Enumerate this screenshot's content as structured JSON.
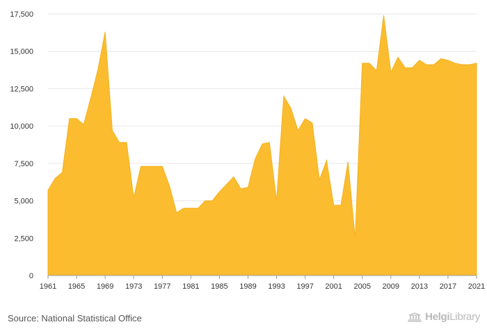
{
  "chart_data": {
    "type": "area",
    "color": "#FBBC2F",
    "x_start": 1961,
    "x_tick_labels": [
      "1961",
      "1965",
      "1969",
      "1973",
      "1977",
      "1981",
      "1985",
      "1989",
      "1993",
      "1997",
      "2001",
      "2005",
      "2009",
      "2013",
      "2017",
      "2021"
    ],
    "ylim": [
      0,
      17500
    ],
    "y_tick_values": [
      0,
      2500,
      5000,
      7500,
      10000,
      12500,
      15000,
      17500
    ],
    "y_tick_labels": [
      "0",
      "2,500",
      "5,000",
      "7,500",
      "10,000",
      "12,500",
      "15,000",
      "17,500"
    ],
    "x": [
      1961,
      1962,
      1963,
      1964,
      1965,
      1966,
      1967,
      1968,
      1969,
      1970,
      1971,
      1972,
      1973,
      1974,
      1975,
      1976,
      1977,
      1978,
      1979,
      1980,
      1981,
      1982,
      1983,
      1984,
      1985,
      1986,
      1987,
      1988,
      1989,
      1990,
      1991,
      1992,
      1993,
      1994,
      1995,
      1996,
      1997,
      1998,
      1999,
      2000,
      2001,
      2002,
      2003,
      2004,
      2005,
      2006,
      2007,
      2008,
      2009,
      2010,
      2011,
      2012,
      2013,
      2014,
      2015,
      2016,
      2017,
      2018,
      2019,
      2020,
      2021
    ],
    "values": [
      5700,
      6500,
      6900,
      10500,
      10500,
      10100,
      11900,
      13800,
      16300,
      9700,
      8900,
      8900,
      5200,
      7300,
      7300,
      7300,
      7300,
      6000,
      4200,
      4500,
      4500,
      4500,
      5000,
      5000,
      5600,
      6100,
      6600,
      5800,
      5900,
      7800,
      8800,
      8900,
      5000,
      12000,
      11200,
      9700,
      10500,
      10200,
      6400,
      7700,
      4700,
      4700,
      7600,
      2500,
      14200,
      14200,
      13700,
      17400,
      13600,
      14600,
      13900,
      13900,
      14400,
      14100,
      14100,
      14500,
      14400,
      14200,
      14100,
      14100,
      14200
    ]
  },
  "footer": {
    "source": "Source: National Statistical Office",
    "brand_name": "Helgi",
    "brand_suffix": "Library"
  },
  "icons": {
    "brand": "library-building-icon"
  }
}
